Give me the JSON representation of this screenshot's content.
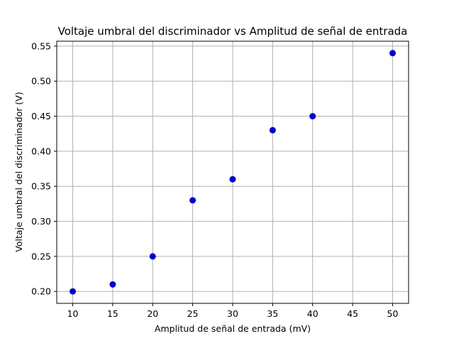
{
  "chart_data": {
    "type": "scatter",
    "title": "Voltaje umbral del discriminador vs Amplitud de señal de entrada",
    "xlabel": "Amplitud de señal de entrada (mV)",
    "ylabel": "Voltaje umbral del discriminador (V)",
    "x": [
      10,
      15,
      20,
      25,
      30,
      35,
      40,
      50
    ],
    "y": [
      0.2,
      0.21,
      0.25,
      0.33,
      0.36,
      0.43,
      0.45,
      0.54
    ],
    "xlim": [
      8,
      52
    ],
    "ylim": [
      0.183,
      0.557
    ],
    "xticks": [
      10,
      15,
      20,
      25,
      30,
      35,
      40,
      45,
      50
    ],
    "xtick_labels": [
      "10",
      "15",
      "20",
      "25",
      "30",
      "35",
      "40",
      "45",
      "50"
    ],
    "yticks": [
      0.2,
      0.25,
      0.3,
      0.35,
      0.4,
      0.45,
      0.5,
      0.55
    ],
    "ytick_labels": [
      "0.20",
      "0.25",
      "0.30",
      "0.35",
      "0.40",
      "0.45",
      "0.50",
      "0.55"
    ],
    "grid": true,
    "marker_color": "#0000cc"
  }
}
